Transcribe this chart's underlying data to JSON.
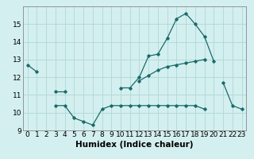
{
  "x": [
    0,
    1,
    2,
    3,
    4,
    5,
    6,
    7,
    8,
    9,
    10,
    11,
    12,
    13,
    14,
    15,
    16,
    17,
    18,
    19,
    20,
    21,
    22,
    23
  ],
  "line1": [
    12.7,
    12.3,
    null,
    11.2,
    11.2,
    null,
    null,
    null,
    null,
    null,
    11.4,
    11.4,
    12.0,
    13.2,
    13.3,
    14.2,
    15.3,
    15.6,
    15.0,
    14.3,
    12.9,
    null,
    null,
    null
  ],
  "line2": [
    null,
    null,
    null,
    null,
    null,
    null,
    null,
    null,
    null,
    null,
    null,
    null,
    11.8,
    12.1,
    12.4,
    12.6,
    12.7,
    12.8,
    12.9,
    13.0,
    null,
    11.7,
    10.4,
    10.2
  ],
  "line3": [
    null,
    null,
    null,
    10.4,
    10.4,
    9.7,
    9.5,
    9.3,
    10.2,
    10.4,
    10.4,
    10.4,
    10.4,
    10.4,
    10.4,
    10.4,
    10.4,
    10.4,
    10.4,
    10.2,
    null,
    null,
    null,
    null
  ],
  "bg_color": "#d4efef",
  "grid_color": "#aed8d8",
  "line_color": "#1a6b6b",
  "ylim": [
    9,
    16
  ],
  "xlim_min": -0.5,
  "xlim_max": 23.5,
  "xlabel": "Humidex (Indice chaleur)",
  "xlabel_fontsize": 7.5,
  "tick_fontsize": 6.5,
  "yticks": [
    9,
    10,
    11,
    12,
    13,
    14,
    15
  ],
  "xticks": [
    0,
    1,
    2,
    3,
    4,
    5,
    6,
    7,
    8,
    9,
    10,
    11,
    12,
    13,
    14,
    15,
    16,
    17,
    18,
    19,
    20,
    21,
    22,
    23
  ],
  "figwidth": 3.2,
  "figheight": 2.0,
  "dpi": 100
}
